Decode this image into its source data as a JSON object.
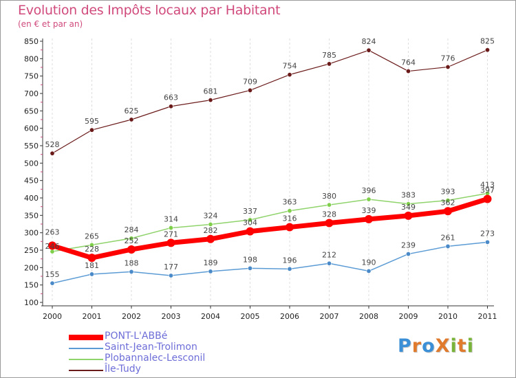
{
  "header": {
    "title": "Evolution des Impôts locaux par Habitant",
    "subtitle": "(en € et par an)"
  },
  "logo": {
    "text": "ProXiti",
    "letters": [
      "P",
      "r",
      "o",
      "X",
      "i",
      "t",
      "i"
    ],
    "colors": [
      "#3b8fd6",
      "#e07a2c",
      "#3b8fd6",
      "#e07a2c",
      "#7ab33a",
      "#e07a2c",
      "#7ab33a"
    ]
  },
  "chart_data": {
    "type": "line",
    "title": "Evolution des Impôts locaux par Habitant",
    "subtitle": "(en € et par an)",
    "xlabel": "",
    "ylabel": "",
    "categories": [
      "2000",
      "2001",
      "2002",
      "2003",
      "2004",
      "2005",
      "2006",
      "2007",
      "2008",
      "2009",
      "2010",
      "2011"
    ],
    "ylim": [
      100,
      850
    ],
    "yticks": [
      100,
      150,
      200,
      250,
      300,
      350,
      400,
      450,
      500,
      550,
      600,
      650,
      700,
      750,
      800,
      850
    ],
    "grid": "vertical",
    "legend_position": "bottom-left",
    "series": [
      {
        "name": "Île-Tudy",
        "color": "#6b1a1a",
        "values": [
          528,
          595,
          625,
          663,
          681,
          709,
          754,
          785,
          824,
          764,
          776,
          825
        ]
      },
      {
        "name": "Plobannalec-Lesconil",
        "color": "#8fd36b",
        "values": [
          246,
          265,
          284,
          314,
          324,
          337,
          363,
          380,
          396,
          383,
          393,
          413
        ]
      },
      {
        "name": "Saint-Jean-Trolimon",
        "color": "#5b9bd5",
        "values": [
          155,
          181,
          188,
          177,
          189,
          198,
          196,
          212,
          190,
          239,
          261,
          273
        ]
      },
      {
        "name": "PONT-L'ABBé",
        "color": "#ff0000",
        "values": [
          263,
          228,
          252,
          271,
          282,
          304,
          316,
          328,
          339,
          349,
          362,
          397
        ]
      }
    ],
    "legend_order": [
      "PONT-L'ABBé",
      "Saint-Jean-Trolimon",
      "Plobannalec-Lesconil",
      "Île-Tudy"
    ]
  }
}
